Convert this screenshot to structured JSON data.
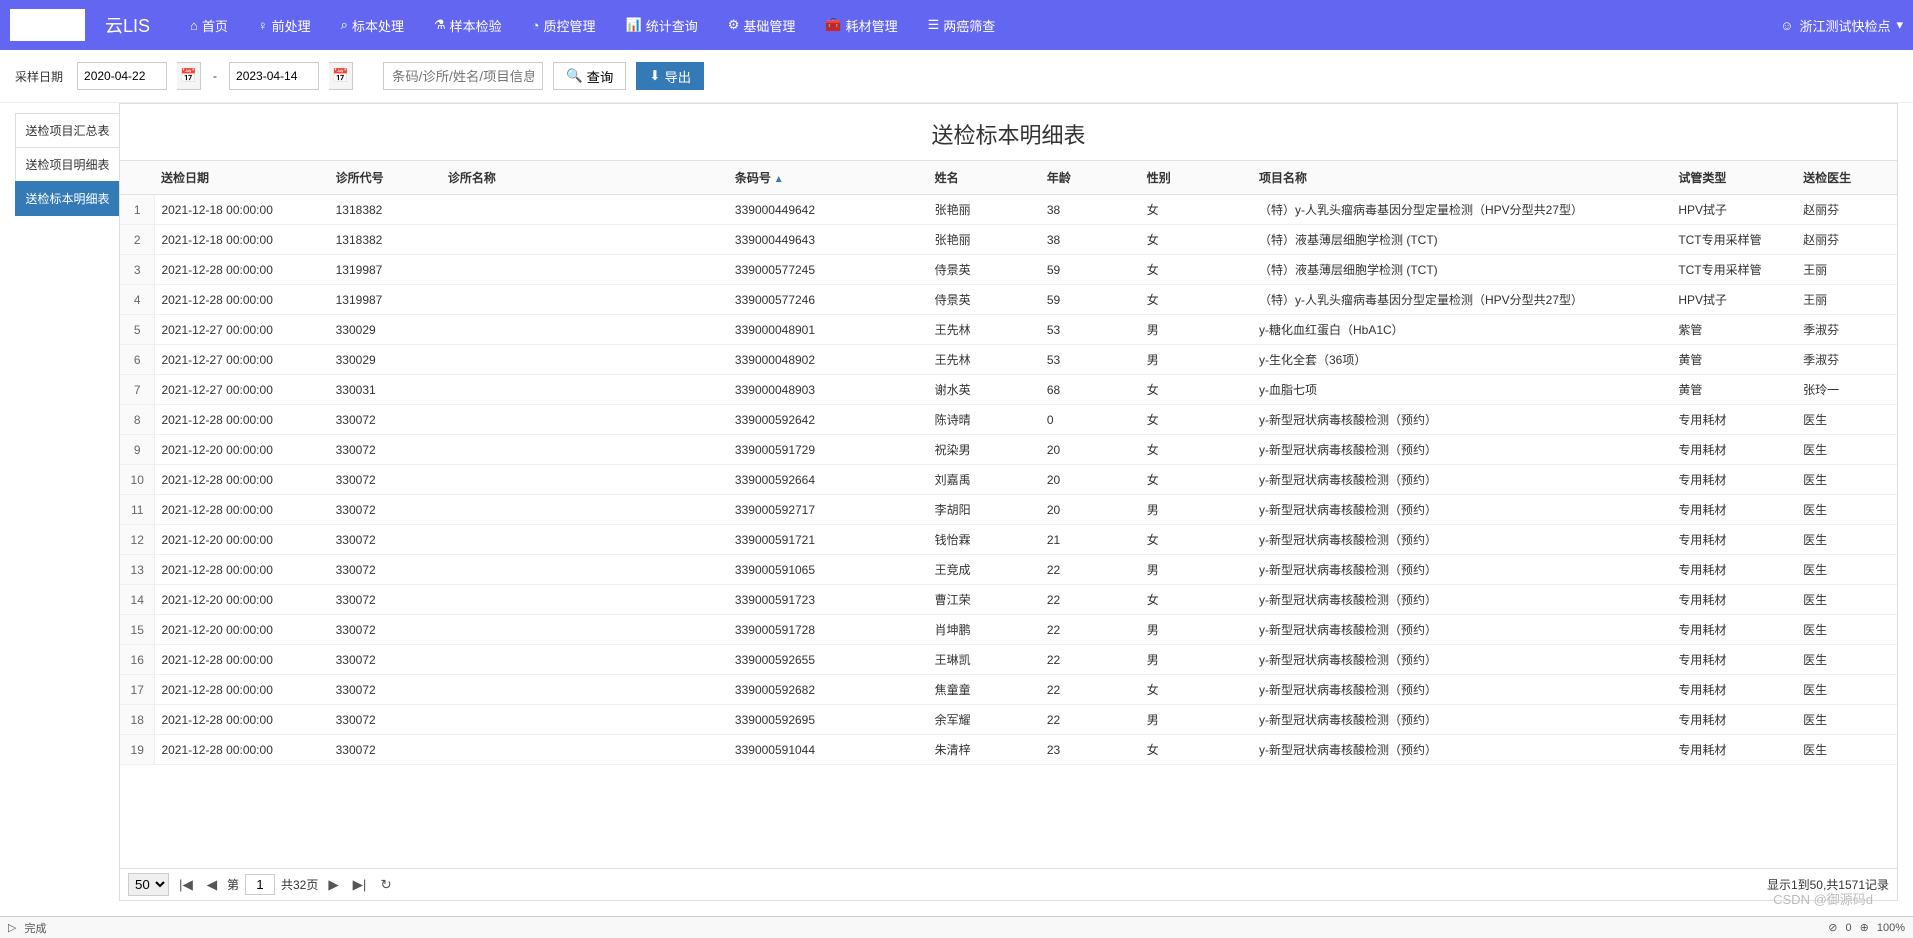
{
  "brand": "云LIS",
  "nav": [
    {
      "icon": "⌂",
      "label": "首页"
    },
    {
      "icon": "♀",
      "label": "前处理"
    },
    {
      "icon": "⌕",
      "label": "标本处理"
    },
    {
      "icon": "⚗",
      "label": "样本检验"
    },
    {
      "icon": "◔",
      "label": "质控管理"
    },
    {
      "icon": "📊",
      "label": "统计查询"
    },
    {
      "icon": "⚙",
      "label": "基础管理"
    },
    {
      "icon": "🧰",
      "label": "耗材管理"
    },
    {
      "icon": "☰",
      "label": "两癌筛查"
    }
  ],
  "user": {
    "icon": "☺",
    "name": "浙江测试快检点",
    "caret": "▾"
  },
  "toolbar": {
    "date_label": "采样日期",
    "date_from": "2020-04-22",
    "date_to": "2023-04-14",
    "search_ph": "条码/诊所/姓名/项目信息",
    "query_icon": "🔍",
    "query_label": "查询",
    "export_icon": "⬇",
    "export_label": "导出"
  },
  "tabs": [
    "送检项目汇总表",
    "送检项目明细表",
    "送检标本明细表"
  ],
  "active_tab": 2,
  "title": "送检标本明细表",
  "columns": [
    "",
    "送检日期",
    "诊所代号",
    "诊所名称",
    "条码号",
    "姓名",
    "年龄",
    "性别",
    "项目名称",
    "试管类型",
    "送检医生"
  ],
  "sort_col": 4,
  "rows": [
    [
      "1",
      "2021-12-18 00:00:00",
      "1318382",
      "",
      "339000449642",
      "张艳丽",
      "38",
      "女",
      "（特）y-人乳头瘤病毒基因分型定量检测（HPV分型共27型）",
      "HPV拭子",
      "赵丽芬"
    ],
    [
      "2",
      "2021-12-18 00:00:00",
      "1318382",
      "",
      "339000449643",
      "张艳丽",
      "38",
      "女",
      "（特）液基薄层细胞学检测 (TCT)",
      "TCT专用采样管",
      "赵丽芬"
    ],
    [
      "3",
      "2021-12-28 00:00:00",
      "1319987",
      "",
      "339000577245",
      "侍景英",
      "59",
      "女",
      "（特）液基薄层细胞学检测 (TCT)",
      "TCT专用采样管",
      "王丽"
    ],
    [
      "4",
      "2021-12-28 00:00:00",
      "1319987",
      "",
      "339000577246",
      "侍景英",
      "59",
      "女",
      "（特）y-人乳头瘤病毒基因分型定量检测（HPV分型共27型）",
      "HPV拭子",
      "王丽"
    ],
    [
      "5",
      "2021-12-27 00:00:00",
      "330029",
      "",
      "339000048901",
      "王先林",
      "53",
      "男",
      "y-糖化血红蛋白（HbA1C）",
      "紫管",
      "季淑芬"
    ],
    [
      "6",
      "2021-12-27 00:00:00",
      "330029",
      "",
      "339000048902",
      "王先林",
      "53",
      "男",
      "y-生化全套（36项）",
      "黄管",
      "季淑芬"
    ],
    [
      "7",
      "2021-12-27 00:00:00",
      "330031",
      "",
      "339000048903",
      "谢水英",
      "68",
      "女",
      "y-血脂七项",
      "黄管",
      "张玲一"
    ],
    [
      "8",
      "2021-12-28 00:00:00",
      "330072",
      "",
      "339000592642",
      "陈诗晴",
      "0",
      "女",
      "y-新型冠状病毒核酸检测（预约）",
      "专用耗材",
      "医生"
    ],
    [
      "9",
      "2021-12-20 00:00:00",
      "330072",
      "",
      "339000591729",
      "祝染男",
      "20",
      "女",
      "y-新型冠状病毒核酸检测（预约）",
      "专用耗材",
      "医生"
    ],
    [
      "10",
      "2021-12-28 00:00:00",
      "330072",
      "",
      "339000592664",
      "刘嘉禹",
      "20",
      "女",
      "y-新型冠状病毒核酸检测（预约）",
      "专用耗材",
      "医生"
    ],
    [
      "11",
      "2021-12-28 00:00:00",
      "330072",
      "",
      "339000592717",
      "李胡阳",
      "20",
      "男",
      "y-新型冠状病毒核酸检测（预约）",
      "专用耗材",
      "医生"
    ],
    [
      "12",
      "2021-12-20 00:00:00",
      "330072",
      "",
      "339000591721",
      "钱怡霖",
      "21",
      "女",
      "y-新型冠状病毒核酸检测（预约）",
      "专用耗材",
      "医生"
    ],
    [
      "13",
      "2021-12-28 00:00:00",
      "330072",
      "",
      "339000591065",
      "王竞成",
      "22",
      "男",
      "y-新型冠状病毒核酸检测（预约）",
      "专用耗材",
      "医生"
    ],
    [
      "14",
      "2021-12-20 00:00:00",
      "330072",
      "",
      "339000591723",
      "曹江荣",
      "22",
      "女",
      "y-新型冠状病毒核酸检测（预约）",
      "专用耗材",
      "医生"
    ],
    [
      "15",
      "2021-12-20 00:00:00",
      "330072",
      "",
      "339000591728",
      "肖坤鹏",
      "22",
      "男",
      "y-新型冠状病毒核酸检测（预约）",
      "专用耗材",
      "医生"
    ],
    [
      "16",
      "2021-12-28 00:00:00",
      "330072",
      "",
      "339000592655",
      "王琳凯",
      "22",
      "男",
      "y-新型冠状病毒核酸检测（预约）",
      "专用耗材",
      "医生"
    ],
    [
      "17",
      "2021-12-28 00:00:00",
      "330072",
      "",
      "339000592682",
      "焦童童",
      "22",
      "女",
      "y-新型冠状病毒核酸检测（预约）",
      "专用耗材",
      "医生"
    ],
    [
      "18",
      "2021-12-28 00:00:00",
      "330072",
      "",
      "339000592695",
      "余军耀",
      "22",
      "男",
      "y-新型冠状病毒核酸检测（预约）",
      "专用耗材",
      "医生"
    ],
    [
      "19",
      "2021-12-28 00:00:00",
      "330072",
      "",
      "339000591044",
      "朱清梓",
      "23",
      "女",
      "y-新型冠状病毒核酸检测（预约）",
      "专用耗材",
      "医生"
    ]
  ],
  "pager": {
    "page_size": "50",
    "page_sizes": [
      "50"
    ],
    "first": "|◀",
    "prev": "◀",
    "next": "▶",
    "last": "▶|",
    "refresh": "↻",
    "page_lbl_pre": "第",
    "page": "1",
    "page_lbl_post": "共32页",
    "info": "显示1到50,共1571记录"
  },
  "status": {
    "play": "▷",
    "done": "完成",
    "watermark": "CSDN @御源码d",
    "err_ic": "⊘",
    "err": "0",
    "zoom_ic": "⊕",
    "zoom": "100%"
  },
  "col_widths": [
    "28px",
    "140px",
    "90px",
    "230px",
    "160px",
    "90px",
    "80px",
    "90px",
    "280px",
    "100px",
    "80px"
  ]
}
